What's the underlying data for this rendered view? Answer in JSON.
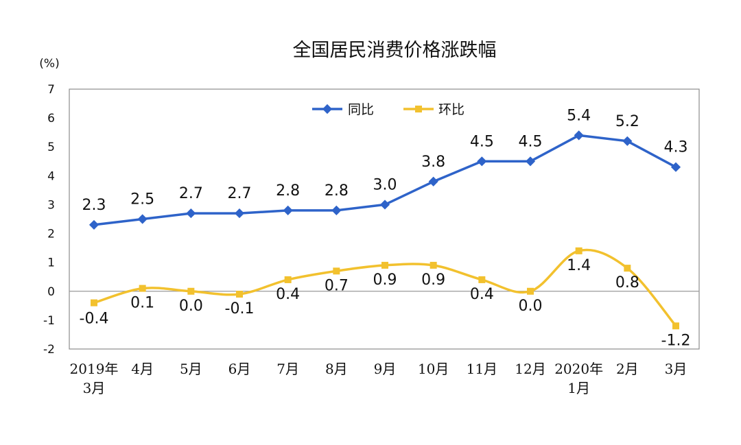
{
  "chart_data": {
    "type": "line",
    "title": "全国居民消费价格涨跌幅",
    "ylabel": "(%)",
    "ylim": [
      -2,
      7
    ],
    "yticks": [
      7,
      6,
      5,
      4,
      3,
      2,
      1,
      0,
      -1,
      -2
    ],
    "categories": [
      [
        "2019年",
        "3月"
      ],
      [
        "4月"
      ],
      [
        "5月"
      ],
      [
        "6月"
      ],
      [
        "7月"
      ],
      [
        "8月"
      ],
      [
        "9月"
      ],
      [
        "10月"
      ],
      [
        "11月"
      ],
      [
        "12月"
      ],
      [
        "2020年",
        "1月"
      ],
      [
        "2月"
      ],
      [
        "3月"
      ]
    ],
    "legend_position": "top",
    "series": [
      {
        "name": "同比",
        "color": "#2e63c9",
        "marker": "diamond",
        "values": [
          2.3,
          2.5,
          2.7,
          2.7,
          2.8,
          2.8,
          3.0,
          3.8,
          4.5,
          4.5,
          5.4,
          5.2,
          4.3
        ],
        "labels": [
          "2.3",
          "2.5",
          "2.7",
          "2.7",
          "2.8",
          "2.8",
          "3.0",
          "3.8",
          "4.5",
          "4.5",
          "5.4",
          "5.2",
          "4.3"
        ]
      },
      {
        "name": "环比",
        "color": "#f2c12e",
        "marker": "square",
        "values": [
          -0.4,
          0.1,
          0.0,
          -0.1,
          0.4,
          0.7,
          0.9,
          0.9,
          0.4,
          0.0,
          1.4,
          0.8,
          -1.2
        ],
        "labels": [
          "-0.4",
          "0.1",
          "0.0",
          "-0.1",
          "0.4",
          "0.7",
          "0.9",
          "0.9",
          "0.4",
          "0.0",
          "1.4",
          "0.8",
          "-1.2"
        ]
      }
    ]
  }
}
